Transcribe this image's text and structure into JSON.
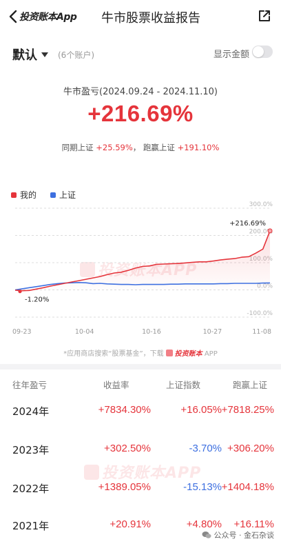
{
  "header": {
    "back_label": "投资账本App",
    "title": "牛市股票收益报告"
  },
  "account": {
    "name": "默认",
    "count": "(6个账户)",
    "show_amount_label": "显示金额",
    "show_amount_on": false
  },
  "summary": {
    "period": "牛市盈亏(2024.09.24 - 2024.11.10)",
    "return": "+216.69%",
    "benchmark_label": "同期上证",
    "benchmark_value": "+25.59%",
    "separator": "，",
    "beat_label": "跑赢上证",
    "beat_value": "+191.10%"
  },
  "legend": {
    "mine": "我的",
    "index": "上证"
  },
  "watermark": "投资账本APP",
  "footnote": {
    "text": "*应用商店搜索“股票基金”，下载",
    "brand": "投资账本",
    "suffix": "APP"
  },
  "chart_data": {
    "type": "line",
    "x_ticks": [
      "09-23",
      "10-04",
      "10-16",
      "10-27",
      "11-08"
    ],
    "y_ticks": [
      "300.0%",
      "200.0%",
      "100.0%",
      "0.0%",
      "-100.0%"
    ],
    "ylim": [
      -100,
      300
    ],
    "annotations": {
      "max": "+216.69%",
      "min": "-1.20%"
    },
    "colors": {
      "mine": "#e5343b",
      "index": "#3d6fe0"
    },
    "series": [
      {
        "name": "我的",
        "values": [
          -1.2,
          -3,
          -2,
          3,
          8,
          14,
          19,
          24,
          29,
          34,
          39,
          44,
          49,
          56,
          62,
          65,
          72,
          80,
          86,
          88,
          94,
          95,
          96,
          97,
          99,
          101,
          103,
          103,
          106,
          110,
          113,
          115,
          120,
          122,
          135,
          150,
          216.69
        ]
      },
      {
        "name": "上证",
        "values": [
          0,
          4,
          8,
          12,
          16,
          20,
          23,
          25,
          26,
          27,
          26,
          23,
          24,
          22,
          21,
          20,
          20,
          19,
          20,
          20,
          20,
          20,
          21,
          21,
          22,
          22,
          22,
          22,
          22,
          23,
          23,
          24,
          24,
          24,
          24,
          25,
          25.59
        ]
      }
    ]
  },
  "table": {
    "headers": [
      "往年盈亏",
      "收益率",
      "上证指数",
      "跑赢上证"
    ],
    "rows": [
      {
        "year": "2024年",
        "ret": "+7834.30%",
        "idx": "+16.05%",
        "beat": "+7818.25%",
        "ret_color": "#e5343b",
        "idx_color": "#e5343b",
        "beat_color": "#e5343b"
      },
      {
        "year": "2023年",
        "ret": "+302.50%",
        "idx": "-3.70%",
        "beat": "+306.20%",
        "ret_color": "#e5343b",
        "idx_color": "#3d6fe0",
        "beat_color": "#e5343b"
      },
      {
        "year": "2022年",
        "ret": "+1389.05%",
        "idx": "-15.13%",
        "beat": "+1404.18%",
        "ret_color": "#e5343b",
        "idx_color": "#3d6fe0",
        "beat_color": "#e5343b"
      },
      {
        "year": "2021年",
        "ret": "+20.91%",
        "idx": "+4.80%",
        "beat": "+16.11%",
        "ret_color": "#e5343b",
        "idx_color": "#e5343b",
        "beat_color": "#e5343b"
      }
    ]
  },
  "wechat_tag": "公众号 · 金石杂谈"
}
